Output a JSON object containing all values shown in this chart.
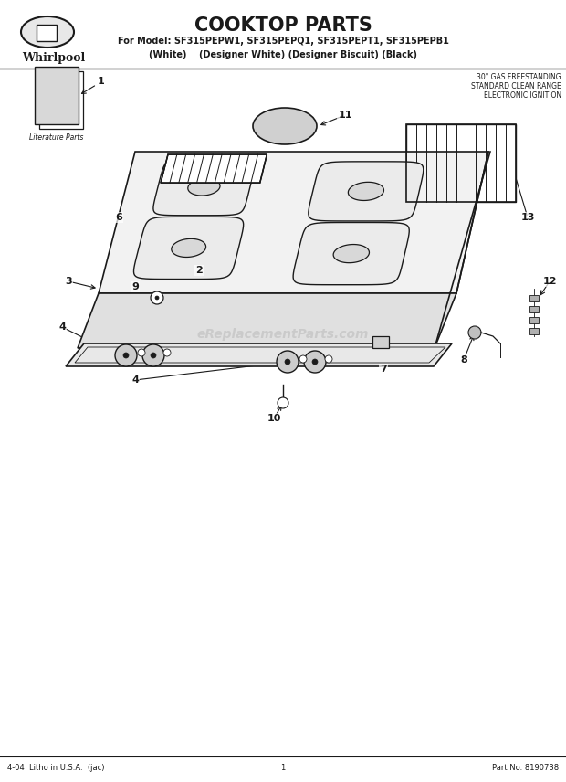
{
  "title": "COOKTOP PARTS",
  "model_line": "For Model: SF315PEPW1, SF315PEPQ1, SF315PEPT1, SF315PEPB1",
  "color_line": "(White)    (Designer White) (Designer Biscuit) (Black)",
  "spec_line1": "30\" GAS FREESTANDING",
  "spec_line2": "STANDARD CLEAN RANGE",
  "spec_line3": "ELECTRONIC IGNITION",
  "footer_left": "4-04  Litho in U.S.A.  (jac)",
  "footer_center": "1",
  "footer_right": "Part No. 8190738",
  "whirlpool_text": "Whirlpool",
  "lit_parts_text": "Literature Parts",
  "watermark": "eReplacementParts.com",
  "bg_color": "#ffffff",
  "line_color": "#1a1a1a"
}
